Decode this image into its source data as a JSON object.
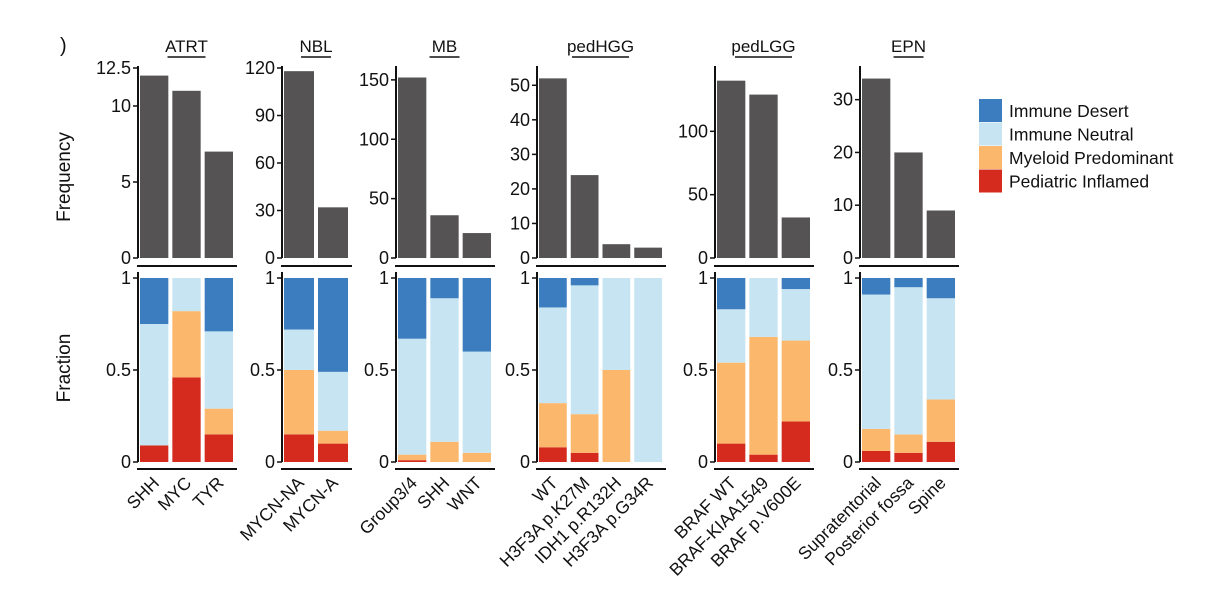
{
  "panel_marker": ")",
  "chart_data": {
    "type": "bar",
    "description_rows": [
      "Frequency",
      "Fraction"
    ],
    "ylabel_top": "Frequency",
    "ylabel_bottom": "Fraction",
    "fraction_ticks": [
      "0",
      "0.5",
      "1"
    ],
    "legend": {
      "placement": "right",
      "entries": [
        {
          "name": "Immune Desert",
          "color": "#3b7dbf"
        },
        {
          "name": "Immune Neutral",
          "color": "#c6e4f2"
        },
        {
          "name": "Myeloid Predominant",
          "color": "#fbb86c"
        },
        {
          "name": "Pediatric Inflamed",
          "color": "#d42b1e"
        }
      ]
    },
    "bar_color": "#555353",
    "panels": [
      {
        "title": "ATRT",
        "categories": [
          "SHH",
          "MYC",
          "TYR"
        ],
        "frequency": [
          12,
          11,
          7
        ],
        "ylim": [
          0,
          12.5
        ],
        "yticks": [
          0,
          5,
          10,
          12.5
        ],
        "ytick_labels": [
          "0",
          "5",
          "10",
          "12.5"
        ],
        "fractions": [
          {
            "Immune Desert": 0.25,
            "Immune Neutral": 0.66,
            "Myeloid Predominant": 0.0,
            "Pediatric Inflamed": 0.09
          },
          {
            "Immune Desert": 0.0,
            "Immune Neutral": 0.18,
            "Myeloid Predominant": 0.36,
            "Pediatric Inflamed": 0.46
          },
          {
            "Immune Desert": 0.29,
            "Immune Neutral": 0.42,
            "Myeloid Predominant": 0.14,
            "Pediatric Inflamed": 0.15
          }
        ]
      },
      {
        "title": "NBL",
        "categories": [
          "MYCN-NA",
          "MYCN-A"
        ],
        "frequency": [
          118,
          32
        ],
        "ylim": [
          0,
          120
        ],
        "yticks": [
          0,
          30,
          60,
          90,
          120
        ],
        "ytick_labels": [
          "0",
          "30",
          "60",
          "90",
          "120"
        ],
        "fractions": [
          {
            "Immune Desert": 0.28,
            "Immune Neutral": 0.22,
            "Myeloid Predominant": 0.35,
            "Pediatric Inflamed": 0.15
          },
          {
            "Immune Desert": 0.51,
            "Immune Neutral": 0.32,
            "Myeloid Predominant": 0.07,
            "Pediatric Inflamed": 0.1
          }
        ]
      },
      {
        "title": "MB",
        "categories": [
          "Group3/4",
          "SHH",
          "WNT"
        ],
        "frequency": [
          152,
          36,
          21
        ],
        "ylim": [
          0,
          160
        ],
        "yticks": [
          0,
          50,
          100,
          150
        ],
        "ytick_labels": [
          "0",
          "50",
          "100",
          "150"
        ],
        "fractions": [
          {
            "Immune Desert": 0.33,
            "Immune Neutral": 0.63,
            "Myeloid Predominant": 0.03,
            "Pediatric Inflamed": 0.01
          },
          {
            "Immune Desert": 0.11,
            "Immune Neutral": 0.78,
            "Myeloid Predominant": 0.11,
            "Pediatric Inflamed": 0.0
          },
          {
            "Immune Desert": 0.4,
            "Immune Neutral": 0.55,
            "Myeloid Predominant": 0.05,
            "Pediatric Inflamed": 0.0
          }
        ]
      },
      {
        "title": "pedHGG",
        "categories": [
          "WT",
          "H3F3A p.K27M",
          "IDH1 p.R132H",
          "H3F3A p.G34R"
        ],
        "frequency": [
          52,
          24,
          4,
          3
        ],
        "ylim": [
          0,
          55
        ],
        "yticks": [
          0,
          10,
          20,
          30,
          40,
          50
        ],
        "ytick_labels": [
          "0",
          "10",
          "20",
          "30",
          "40",
          "50"
        ],
        "fractions": [
          {
            "Immune Desert": 0.16,
            "Immune Neutral": 0.52,
            "Myeloid Predominant": 0.24,
            "Pediatric Inflamed": 0.08
          },
          {
            "Immune Desert": 0.04,
            "Immune Neutral": 0.7,
            "Myeloid Predominant": 0.21,
            "Pediatric Inflamed": 0.05
          },
          {
            "Immune Desert": 0.0,
            "Immune Neutral": 0.5,
            "Myeloid Predominant": 0.5,
            "Pediatric Inflamed": 0.0
          },
          {
            "Immune Desert": 0.0,
            "Immune Neutral": 1.0,
            "Myeloid Predominant": 0.0,
            "Pediatric Inflamed": 0.0
          }
        ]
      },
      {
        "title": "pedLGG",
        "categories": [
          "BRAF WT",
          "BRAF-KIAA1549",
          "BRAF p.V600E"
        ],
        "frequency": [
          140,
          129,
          32
        ],
        "ylim": [
          0,
          150
        ],
        "yticks": [
          0,
          50,
          100
        ],
        "ytick_labels": [
          "0",
          "50",
          "100"
        ],
        "fractions": [
          {
            "Immune Desert": 0.17,
            "Immune Neutral": 0.29,
            "Myeloid Predominant": 0.44,
            "Pediatric Inflamed": 0.1
          },
          {
            "Immune Desert": 0.0,
            "Immune Neutral": 0.32,
            "Myeloid Predominant": 0.64,
            "Pediatric Inflamed": 0.04
          },
          {
            "Immune Desert": 0.06,
            "Immune Neutral": 0.28,
            "Myeloid Predominant": 0.44,
            "Pediatric Inflamed": 0.22
          }
        ]
      },
      {
        "title": "EPN",
        "categories": [
          "Supratentorial",
          "Posterior fossa",
          "Spine"
        ],
        "frequency": [
          34,
          20,
          9
        ],
        "ylim": [
          0,
          36
        ],
        "yticks": [
          0,
          10,
          20,
          30
        ],
        "ytick_labels": [
          "0",
          "10",
          "20",
          "30"
        ],
        "fractions": [
          {
            "Immune Desert": 0.09,
            "Immune Neutral": 0.73,
            "Myeloid Predominant": 0.12,
            "Pediatric Inflamed": 0.06
          },
          {
            "Immune Desert": 0.05,
            "Immune Neutral": 0.8,
            "Myeloid Predominant": 0.1,
            "Pediatric Inflamed": 0.05
          },
          {
            "Immune Desert": 0.11,
            "Immune Neutral": 0.55,
            "Myeloid Predominant": 0.23,
            "Pediatric Inflamed": 0.11
          }
        ]
      }
    ]
  }
}
